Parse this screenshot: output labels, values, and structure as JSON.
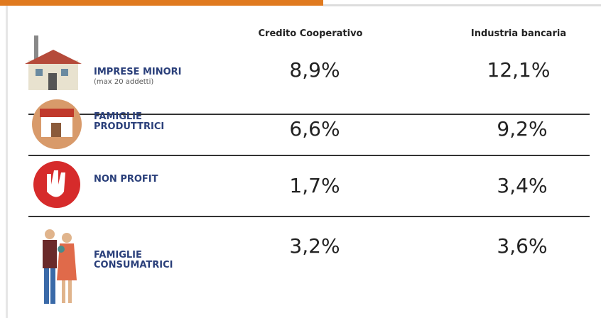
{
  "table": {
    "columns": [
      "Credito Cooperativo",
      "Industria bancaria"
    ],
    "rows": [
      {
        "label": "IMPRESE MINORI",
        "sublabel": "(max 20 addetti)",
        "values": [
          "8,9%",
          "12,1%"
        ]
      },
      {
        "label": "FAMIGLIE PRODUTTRICI",
        "values": [
          "6,6%",
          "9,2%"
        ]
      },
      {
        "label": "NON PROFIT",
        "values": [
          "1,7%",
          "3,4%"
        ]
      },
      {
        "label": "FAMIGLIE CONSUMATRICI",
        "values": [
          "3,2%",
          "3,6%"
        ]
      }
    ]
  }
}
